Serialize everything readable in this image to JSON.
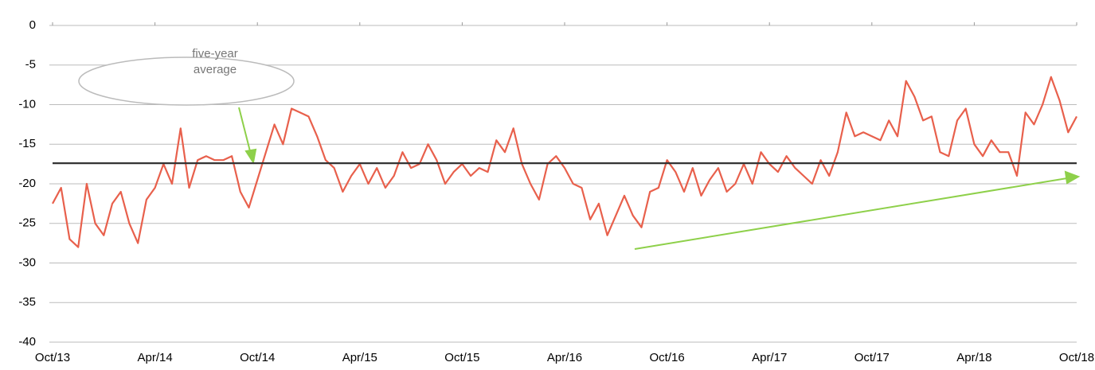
{
  "chart_data": {
    "type": "line",
    "categories": [
      "Oct/13",
      null,
      null,
      null,
      null,
      null,
      null,
      null,
      null,
      null,
      null,
      null,
      "Apr/14",
      null,
      null,
      null,
      null,
      null,
      null,
      null,
      null,
      null,
      null,
      null,
      "Oct/14",
      null,
      null,
      null,
      null,
      null,
      null,
      null,
      null,
      null,
      null,
      null,
      "Apr/15",
      null,
      null,
      null,
      null,
      null,
      null,
      null,
      null,
      null,
      null,
      null,
      "Oct/15",
      null,
      null,
      null,
      null,
      null,
      null,
      null,
      null,
      null,
      null,
      null,
      "Apr/16",
      null,
      null,
      null,
      null,
      null,
      null,
      null,
      null,
      null,
      null,
      null,
      "Oct/16",
      null,
      null,
      null,
      null,
      null,
      null,
      null,
      null,
      null,
      null,
      null,
      "Apr/17",
      null,
      null,
      null,
      null,
      null,
      null,
      null,
      null,
      null,
      null,
      null,
      "Oct/17",
      null,
      null,
      null,
      null,
      null,
      null,
      null,
      null,
      null,
      null,
      null,
      "Apr/18",
      null,
      null,
      null,
      null,
      null,
      null,
      null,
      null,
      null,
      null,
      null,
      "Oct/18"
    ],
    "series": [
      {
        "color": "#e8604c",
        "values": [
          -22.5,
          -20.5,
          -27,
          -28,
          -20,
          -25,
          -26.5,
          -22.5,
          -21,
          -25,
          -27.5,
          -22,
          -20.5,
          -17.5,
          -20,
          -13,
          -20.5,
          -17,
          -16.5,
          -17,
          -17,
          -16.5,
          -21,
          -23,
          -19.5,
          -16,
          -12.5,
          -15,
          -10.5,
          -11,
          -11.5,
          -14,
          -17,
          -18,
          -21,
          -19,
          -17.5,
          -20,
          -18,
          -20.5,
          -19,
          -16,
          -18,
          -17.5,
          -15,
          -17,
          -20,
          -18.5,
          -17.5,
          -19,
          -18,
          -18.5,
          -14.5,
          -16,
          -13,
          -17.5,
          -20,
          -22,
          -17.5,
          -16.5,
          -18,
          -20,
          -20.5,
          -24.5,
          -22.5,
          -26.5,
          -24,
          -21.5,
          -24,
          -25.5,
          -21,
          -20.5,
          -17,
          -18.5,
          -21,
          -18,
          -21.5,
          -19.5,
          -18,
          -21,
          -20,
          -17.5,
          -20,
          -16,
          -17.5,
          -18.5,
          -16.5,
          -18,
          -19,
          -20,
          -17,
          -19,
          -16,
          -11,
          -14,
          -13.5,
          -14,
          -14.5,
          -12,
          -14,
          -7,
          -9,
          -12,
          -11.5,
          -16,
          -16.5,
          -12,
          -10.5,
          -15,
          -16.5,
          -14.5,
          -16,
          -16,
          -19,
          -11,
          -12.5,
          -10,
          -6.5,
          -9.5,
          -13.5,
          -11.5
        ]
      }
    ],
    "average": {
      "value": -17.4,
      "color": "#333333"
    },
    "annotation": "five-year average",
    "ylim": [
      -40,
      0
    ],
    "yticks": [
      0,
      -5,
      -10,
      -15,
      -20,
      -25,
      -30,
      -35,
      -40
    ],
    "grid": true
  }
}
